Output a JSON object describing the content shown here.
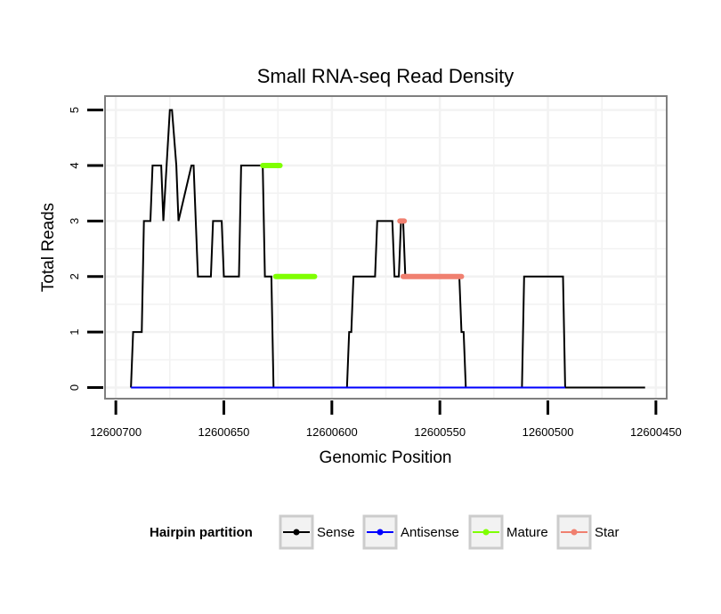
{
  "chart_data": {
    "type": "line",
    "title": "Small RNA-seq Read Density",
    "xlabel": "Genomic Position",
    "ylabel": "Total Reads",
    "xlim": [
      12600705,
      12600445
    ],
    "ylim": [
      -0.2,
      5.25
    ],
    "x_reversed": true,
    "grid": true,
    "x_ticks": [
      12600700,
      12600650,
      12600600,
      12600550,
      12600500,
      12600450
    ],
    "x_tick_labels": [
      "12600700",
      "12600650",
      "12600600",
      "12600550",
      "12600500",
      "12600450"
    ],
    "y_ticks": [
      0,
      1,
      2,
      3,
      4,
      5
    ],
    "y_tick_labels": [
      "0",
      "1",
      "2",
      "3",
      "4",
      "5"
    ],
    "legend": {
      "title": "Hairpin partition",
      "position": "bottom",
      "entries": [
        {
          "label": "Sense",
          "color": "#000000"
        },
        {
          "label": "Antisense",
          "color": "#0000ff"
        },
        {
          "label": "Mature",
          "color": "#7fff00"
        },
        {
          "label": "Star",
          "color": "#f08070"
        }
      ]
    },
    "series": [
      {
        "name": "Sense",
        "color": "#000000",
        "width": 2,
        "x": [
          12600693,
          12600692,
          12600688,
          12600687,
          12600684,
          12600683,
          12600679,
          12600678,
          12600675,
          12600674,
          12600672,
          12600671,
          12600665,
          12600664,
          12600663,
          12600662,
          12600656,
          12600655,
          12600651,
          12600650,
          12600643,
          12600642,
          12600632,
          12600631,
          12600628,
          12600627,
          12600610,
          12600609,
          12600593,
          12600592,
          12600591,
          12600590,
          12600580,
          12600579,
          12600572,
          12600571,
          12600569,
          12600568,
          12600567,
          12600566,
          12600541,
          12600540,
          12600539,
          12600538,
          12600512,
          12600511,
          12600493,
          12600492,
          12600455
        ],
        "y": [
          0,
          1,
          1,
          3,
          3,
          4,
          4,
          3,
          5,
          5,
          4,
          3,
          4,
          4,
          3,
          2,
          2,
          3,
          3,
          2,
          2,
          4,
          4,
          2,
          2,
          0,
          0,
          0,
          0,
          1,
          1,
          2,
          2,
          3,
          3,
          2,
          2,
          3,
          3,
          2,
          2,
          1,
          1,
          0,
          0,
          2,
          2,
          0,
          0
        ]
      },
      {
        "name": "Antisense",
        "color": "#0000ff",
        "width": 2,
        "x": [
          12600693,
          12600492
        ],
        "y": [
          0,
          0
        ]
      },
      {
        "name": "Mature",
        "color": "#7fff00",
        "width": 6,
        "segments": [
          {
            "x": [
              12600632,
              12600624
            ],
            "y": [
              4,
              4
            ]
          },
          {
            "x": [
              12600626,
              12600608
            ],
            "y": [
              2,
              2
            ]
          }
        ]
      },
      {
        "name": "Star",
        "color": "#f08070",
        "width": 6,
        "segments": [
          {
            "x": [
              12600568.5,
              12600566.5
            ],
            "y": [
              3,
              3
            ]
          },
          {
            "x": [
              12600567,
              12600540
            ],
            "y": [
              2,
              2
            ]
          }
        ]
      }
    ]
  }
}
